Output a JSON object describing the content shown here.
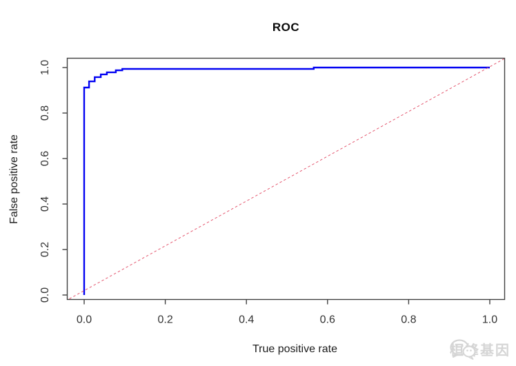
{
  "chart_data": {
    "type": "line",
    "title": "ROC",
    "xlabel": "True positive rate",
    "ylabel": "False positive rate",
    "xlim": [
      0,
      1
    ],
    "ylim": [
      0,
      1
    ],
    "grid": false,
    "legend": "none",
    "x_ticks": [
      0,
      0.2,
      0.4,
      0.6,
      0.8,
      1.0
    ],
    "y_ticks": [
      0,
      0.2,
      0.4,
      0.6,
      0.8,
      1.0
    ],
    "x_tick_labels": [
      "0.0",
      "0.2",
      "0.4",
      "0.6",
      "0.8",
      "1.0"
    ],
    "y_tick_labels": [
      "0.0",
      "0.2",
      "0.4",
      "0.6",
      "0.8",
      "1.0"
    ],
    "axis_color": "#404040",
    "tick_label_color": "#333333",
    "series": [
      {
        "name": "ROC curve",
        "style": "solid-step",
        "color": "#0202f2",
        "line_width": 2.4,
        "points": [
          [
            0,
            0
          ],
          [
            0,
            0.912
          ],
          [
            0.012,
            0.912
          ],
          [
            0.012,
            0.939
          ],
          [
            0.026,
            0.939
          ],
          [
            0.026,
            0.958
          ],
          [
            0.041,
            0.958
          ],
          [
            0.041,
            0.97
          ],
          [
            0.056,
            0.97
          ],
          [
            0.056,
            0.979
          ],
          [
            0.078,
            0.979
          ],
          [
            0.078,
            0.988
          ],
          [
            0.094,
            0.988
          ],
          [
            0.094,
            0.994
          ],
          [
            0.566,
            0.994
          ],
          [
            0.566,
            1.0
          ],
          [
            1.0,
            1.0
          ]
        ]
      },
      {
        "name": "chance diagonal",
        "style": "dashed",
        "color": "#e4576f",
        "line_width": 1,
        "points": [
          [
            0,
            0
          ],
          [
            1,
            1
          ]
        ],
        "extends_to_plot_edges": true
      }
    ]
  },
  "watermark": {
    "text": "桓峰基因",
    "icon": "wechat-chat-bubbles-icon",
    "color": "#d3d3d3"
  }
}
